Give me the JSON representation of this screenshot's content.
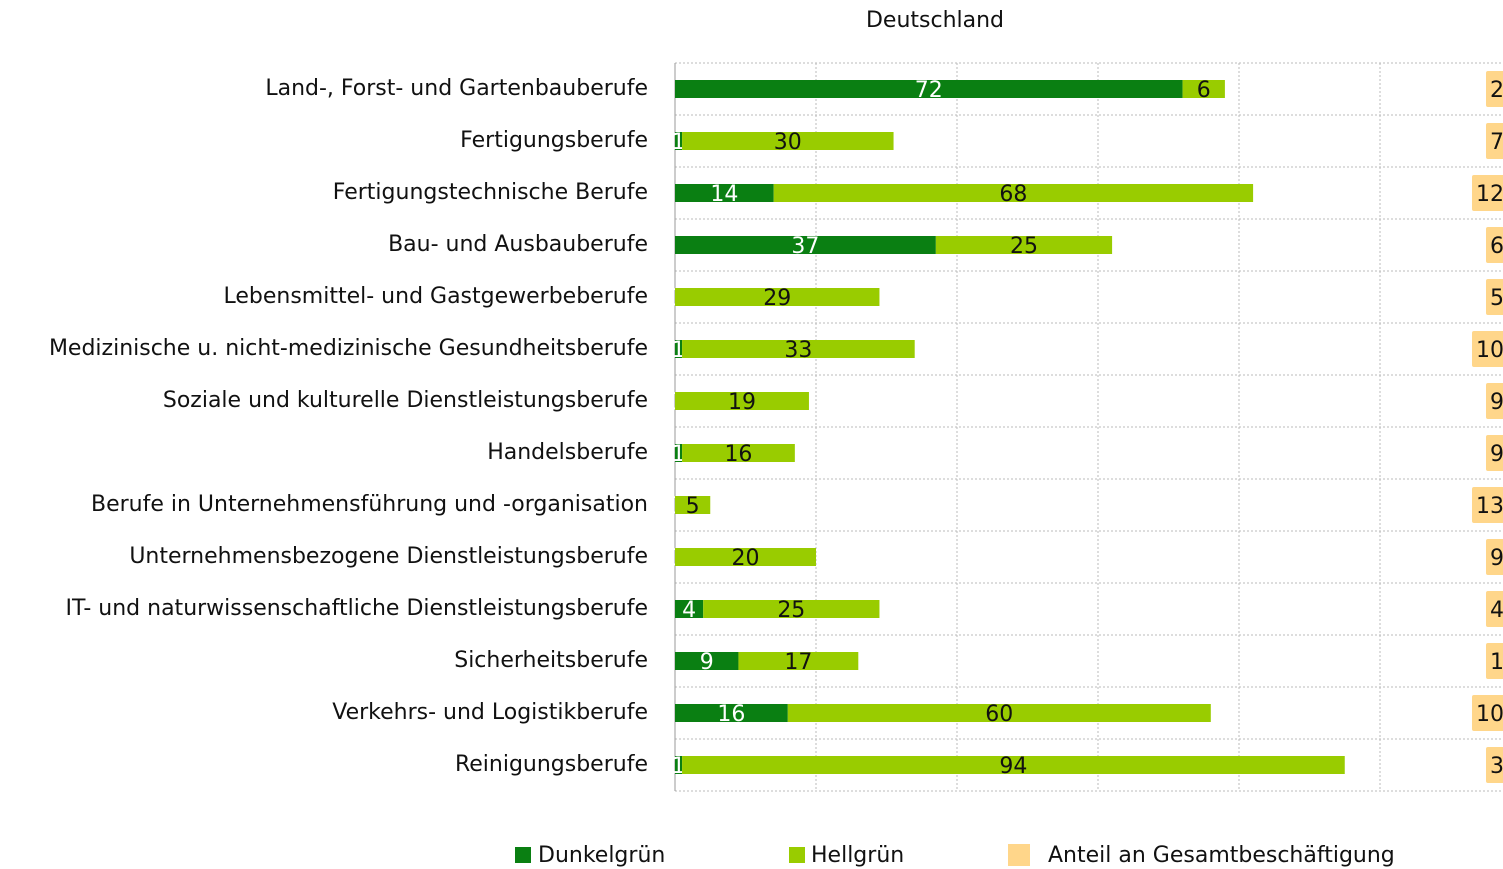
{
  "chart_data": {
    "type": "stacked-barh",
    "title": "Deutschland",
    "categories": [
      "Land-, Forst- und Gartenbauberufe",
      "Fertigungsberufe",
      "Fertigungstechnische Berufe",
      "Bau- und Ausbauberufe",
      "Lebensmittel- und Gastgewerbeberufe",
      "Medizinische u. nicht-medizinische Gesundheitsberufe",
      "Soziale und kulturelle Dienstleistungsberufe",
      "Handelsberufe",
      "Berufe in Unternehmensführung und -organisation",
      "Unternehmensbezogene Dienstleistungsberufe",
      "IT- und naturwissenschaftliche Dienstleistungsberufe",
      "Sicherheitsberufe",
      "Verkehrs- und Logistikberufe",
      "Reinigungsberufe"
    ],
    "series": [
      {
        "name": "Dunkelgrün",
        "color": "#0a7f12",
        "values": [
          72,
          1,
          14,
          37,
          0,
          1,
          0,
          1,
          0,
          0,
          4,
          9,
          16,
          1
        ]
      },
      {
        "name": "Hellgrün",
        "color": "#99cc00",
        "values": [
          6,
          30,
          68,
          25,
          29,
          33,
          19,
          16,
          5,
          20,
          25,
          17,
          60,
          94
        ]
      },
      {
        "name": "Anteil an Gesamtbeschäftigung",
        "color": "#ffd68a",
        "values": [
          2,
          7,
          12,
          6,
          5,
          10,
          9,
          9,
          13,
          9,
          4,
          1,
          10,
          3
        ]
      }
    ],
    "xlim": [
      0,
      120
    ],
    "xticks": [
      0,
      20,
      40,
      60,
      80,
      100,
      120
    ],
    "grid": true
  }
}
